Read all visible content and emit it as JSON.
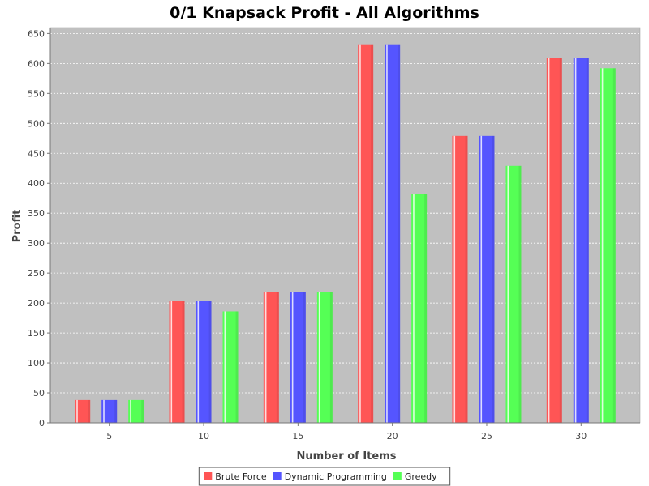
{
  "chart_data": {
    "type": "bar",
    "title": "0/1 Knapsack Profit - All Algorithms",
    "xlabel": "Number of Items",
    "ylabel": "Profit",
    "categories": [
      "5",
      "10",
      "15",
      "20",
      "25",
      "30"
    ],
    "series": [
      {
        "name": "Brute Force",
        "color": "#ff5555",
        "values": [
          38,
          204,
          218,
          632,
          479,
          609
        ]
      },
      {
        "name": "Dynamic Programming",
        "color": "#5555ff",
        "values": [
          38,
          204,
          218,
          632,
          479,
          609
        ]
      },
      {
        "name": "Greedy",
        "color": "#55ff55",
        "values": [
          38,
          186,
          218,
          382,
          429,
          592
        ]
      }
    ],
    "ylim": [
      0,
      660
    ],
    "yticks": [
      0,
      50,
      100,
      150,
      200,
      250,
      300,
      350,
      400,
      450,
      500,
      550,
      600,
      650
    ],
    "grid": true,
    "legend_position": "bottom-center",
    "plot_background": "#c0c0c0"
  }
}
